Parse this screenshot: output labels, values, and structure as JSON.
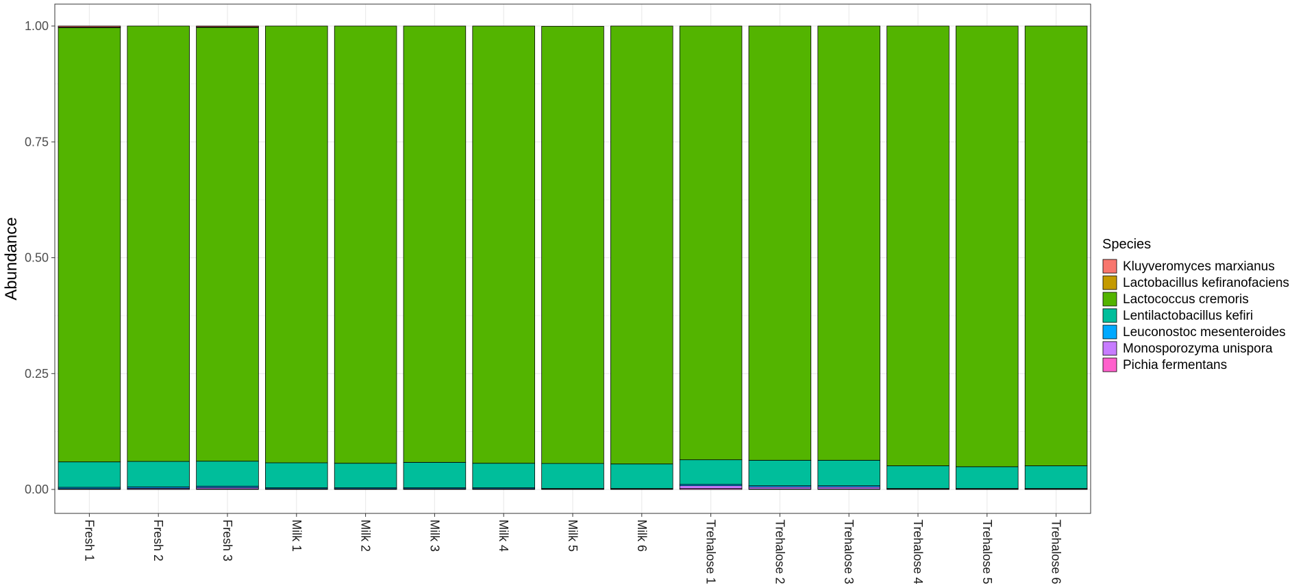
{
  "chart_data": {
    "type": "bar",
    "stacked": true,
    "ylabel": "Abundance",
    "xlabel": "",
    "ylim": [
      -0.05,
      1.05
    ],
    "yticks": [
      "0.00",
      "0.25",
      "0.50",
      "0.75",
      "1.00"
    ],
    "grid": true,
    "legend": {
      "title": "Species",
      "position": "right"
    },
    "categories": [
      "Fresh 1",
      "Fresh 2",
      "Fresh 3",
      "Milk 1",
      "Milk 2",
      "Milk 3",
      "Milk 4",
      "Milk 5",
      "Milk 6",
      "Trehalose 1",
      "Trehalose 2",
      "Trehalose 3",
      "Trehalose 4",
      "Trehalose 5",
      "Trehalose 6"
    ],
    "series": [
      {
        "name": "Pichia fermentans",
        "color": "#FF61CC",
        "values": [
          0.0005,
          0.0005,
          0.001,
          0.0005,
          0.0005,
          0.0005,
          0.0005,
          0.0005,
          0.0005,
          0.002,
          0.001,
          0.001,
          0.0005,
          0.0005,
          0.0005
        ]
      },
      {
        "name": "Monosporozyma unispora",
        "color": "#C77CFF",
        "values": [
          0.001,
          0.002,
          0.003,
          0.001,
          0.001,
          0.001,
          0.001,
          0.0005,
          0.0005,
          0.006,
          0.004,
          0.004,
          0.0005,
          0.0005,
          0.0005
        ]
      },
      {
        "name": "Leuconostoc mesenteroides",
        "color": "#00A9FF",
        "values": [
          0.003,
          0.003,
          0.003,
          0.002,
          0.002,
          0.002,
          0.002,
          0.001,
          0.001,
          0.003,
          0.003,
          0.003,
          0.001,
          0.001,
          0.001
        ]
      },
      {
        "name": "Lentilactobacillus kefiri",
        "color": "#00BE9B",
        "values": [
          0.055,
          0.055,
          0.054,
          0.054,
          0.053,
          0.055,
          0.053,
          0.054,
          0.053,
          0.053,
          0.055,
          0.055,
          0.049,
          0.047,
          0.049
        ]
      },
      {
        "name": "Lactococcus cremoris",
        "color": "#53B400",
        "values": [
          0.937,
          0.9395,
          0.936,
          0.9425,
          0.9435,
          0.9415,
          0.9435,
          0.9435,
          0.945,
          0.936,
          0.937,
          0.937,
          0.949,
          0.951,
          0.949
        ]
      },
      {
        "name": "Lactobacillus kefiranofaciens",
        "color": "#C49A00",
        "values": [
          0.001,
          0.0,
          0.001,
          0.0,
          0.0,
          0.0,
          0.0,
          0.0,
          0.0,
          0.0,
          0.0,
          0.0,
          0.0,
          0.0,
          0.0
        ]
      },
      {
        "name": "Kluyveromyces marxianus",
        "color": "#F8766D",
        "values": [
          0.0025,
          0.0,
          0.002,
          0.0,
          0.0,
          0.0,
          0.0,
          0.0,
          0.0,
          0.0,
          0.0,
          0.0,
          0.0,
          0.0,
          0.0
        ]
      }
    ],
    "legend_order": [
      "Kluyveromyces marxianus",
      "Lactobacillus kefiranofaciens",
      "Lactococcus cremoris",
      "Lentilactobacillus kefiri",
      "Leuconostoc mesenteroides",
      "Monosporozyma unispora",
      "Pichia fermentans"
    ]
  }
}
